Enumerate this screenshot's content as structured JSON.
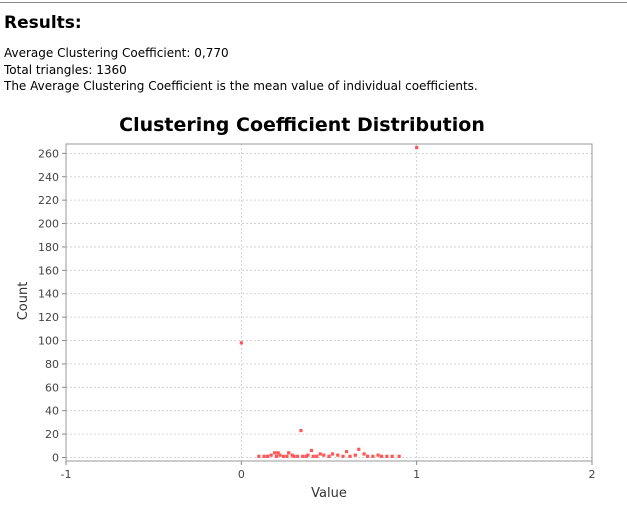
{
  "results": {
    "heading": "Results:",
    "lines": [
      "Average Clustering Coefficient: 0,770",
      "Total triangles: 1360",
      "The Average Clustering Coefficient is the mean value of individual coefficients."
    ]
  },
  "chart_data": {
    "type": "scatter",
    "title": "Clustering Coefficient Distribution",
    "xlabel": "Value",
    "ylabel": "Count",
    "xlim": [
      -1,
      2
    ],
    "ylim": [
      -3,
      268
    ],
    "x_ticks": [
      "-1",
      "0",
      "1",
      "2"
    ],
    "y_ticks": [
      "0",
      "20",
      "40",
      "60",
      "80",
      "100",
      "120",
      "140",
      "160",
      "180",
      "200",
      "220",
      "240",
      "260"
    ],
    "grid": true,
    "legend": "none",
    "point_color": "#ff5555",
    "series": [
      {
        "points": [
          [
            0.0,
            98
          ],
          [
            1.0,
            265
          ],
          [
            0.34,
            23
          ],
          [
            0.1,
            1
          ],
          [
            0.13,
            1
          ],
          [
            0.15,
            1
          ],
          [
            0.17,
            2
          ],
          [
            0.19,
            4
          ],
          [
            0.2,
            1
          ],
          [
            0.21,
            4
          ],
          [
            0.22,
            2
          ],
          [
            0.24,
            1
          ],
          [
            0.26,
            1
          ],
          [
            0.27,
            4
          ],
          [
            0.29,
            2
          ],
          [
            0.3,
            1
          ],
          [
            0.32,
            1
          ],
          [
            0.35,
            1
          ],
          [
            0.37,
            1
          ],
          [
            0.38,
            2
          ],
          [
            0.4,
            6
          ],
          [
            0.41,
            1
          ],
          [
            0.43,
            1
          ],
          [
            0.45,
            3
          ],
          [
            0.47,
            2
          ],
          [
            0.5,
            1
          ],
          [
            0.52,
            3
          ],
          [
            0.55,
            2
          ],
          [
            0.58,
            1
          ],
          [
            0.6,
            5
          ],
          [
            0.62,
            1
          ],
          [
            0.65,
            2
          ],
          [
            0.67,
            7
          ],
          [
            0.7,
            3
          ],
          [
            0.72,
            1
          ],
          [
            0.75,
            1
          ],
          [
            0.78,
            2
          ],
          [
            0.8,
            1
          ],
          [
            0.83,
            1
          ],
          [
            0.86,
            1
          ],
          [
            0.9,
            1
          ]
        ]
      }
    ]
  }
}
